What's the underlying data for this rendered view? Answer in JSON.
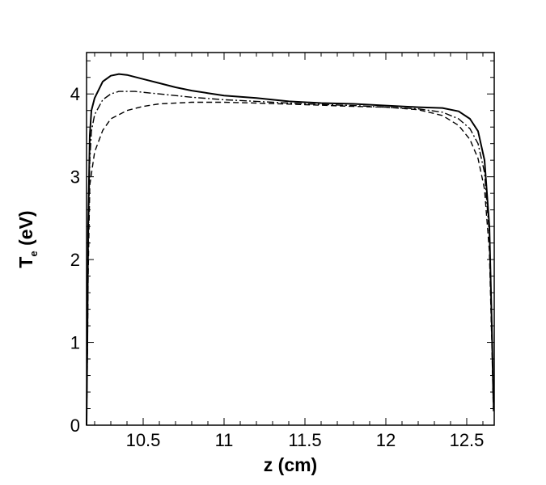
{
  "chart_data": {
    "type": "line",
    "xlabel": "z (cm)",
    "ylabel": {
      "symbol": "T",
      "subscript": "e",
      "unit": "(eV)"
    },
    "xlim": [
      10.15,
      12.67
    ],
    "ylim": [
      0,
      4.5
    ],
    "x_ticks": [
      10.5,
      11,
      11.5,
      12,
      12.5
    ],
    "x_tick_labels": [
      "10.5",
      "11",
      "11.5",
      "12",
      "12.5"
    ],
    "y_ticks": [
      0,
      1,
      2,
      3,
      4
    ],
    "y_tick_labels": [
      "0",
      "1",
      "2",
      "3",
      "4"
    ],
    "grid": false,
    "legend": "none",
    "series": [
      {
        "style": "solid",
        "color": "#000000",
        "points": [
          [
            10.15,
            0
          ],
          [
            10.155,
            1.0
          ],
          [
            10.16,
            2.4
          ],
          [
            10.17,
            3.5
          ],
          [
            10.18,
            3.8
          ],
          [
            10.2,
            3.95
          ],
          [
            10.25,
            4.15
          ],
          [
            10.3,
            4.22
          ],
          [
            10.35,
            4.24
          ],
          [
            10.4,
            4.23
          ],
          [
            10.5,
            4.18
          ],
          [
            10.6,
            4.13
          ],
          [
            10.7,
            4.08
          ],
          [
            10.8,
            4.04
          ],
          [
            10.9,
            4.01
          ],
          [
            11.0,
            3.98
          ],
          [
            11.2,
            3.95
          ],
          [
            11.4,
            3.91
          ],
          [
            11.6,
            3.89
          ],
          [
            11.8,
            3.88
          ],
          [
            12.0,
            3.86
          ],
          [
            12.2,
            3.84
          ],
          [
            12.35,
            3.83
          ],
          [
            12.45,
            3.79
          ],
          [
            12.52,
            3.7
          ],
          [
            12.57,
            3.55
          ],
          [
            12.61,
            3.2
          ],
          [
            12.64,
            2.4
          ],
          [
            12.655,
            1.2
          ],
          [
            12.665,
            0.3
          ]
        ]
      },
      {
        "style": "dashdot",
        "color": "#000000",
        "points": [
          [
            10.15,
            0
          ],
          [
            10.155,
            0.9
          ],
          [
            10.16,
            2.1
          ],
          [
            10.17,
            3.2
          ],
          [
            10.18,
            3.55
          ],
          [
            10.2,
            3.75
          ],
          [
            10.25,
            3.93
          ],
          [
            10.3,
            4.0
          ],
          [
            10.35,
            4.03
          ],
          [
            10.45,
            4.03
          ],
          [
            10.5,
            4.02
          ],
          [
            10.6,
            4.0
          ],
          [
            10.8,
            3.96
          ],
          [
            11.0,
            3.93
          ],
          [
            11.2,
            3.91
          ],
          [
            11.5,
            3.88
          ],
          [
            11.8,
            3.86
          ],
          [
            12.0,
            3.84
          ],
          [
            12.2,
            3.82
          ],
          [
            12.35,
            3.78
          ],
          [
            12.45,
            3.7
          ],
          [
            12.52,
            3.58
          ],
          [
            12.57,
            3.4
          ],
          [
            12.61,
            3.05
          ],
          [
            12.64,
            2.3
          ],
          [
            12.655,
            1.1
          ],
          [
            12.665,
            0.2
          ]
        ]
      },
      {
        "style": "dashed",
        "color": "#000000",
        "points": [
          [
            10.15,
            0
          ],
          [
            10.155,
            0.8
          ],
          [
            10.16,
            1.8
          ],
          [
            10.17,
            2.9
          ],
          [
            10.2,
            3.3
          ],
          [
            10.25,
            3.56
          ],
          [
            10.3,
            3.7
          ],
          [
            10.4,
            3.8
          ],
          [
            10.5,
            3.85
          ],
          [
            10.6,
            3.88
          ],
          [
            10.8,
            3.9
          ],
          [
            11.0,
            3.9
          ],
          [
            11.2,
            3.89
          ],
          [
            11.5,
            3.87
          ],
          [
            11.8,
            3.85
          ],
          [
            12.0,
            3.84
          ],
          [
            12.2,
            3.81
          ],
          [
            12.35,
            3.74
          ],
          [
            12.45,
            3.62
          ],
          [
            12.52,
            3.45
          ],
          [
            12.57,
            3.22
          ],
          [
            12.61,
            2.85
          ],
          [
            12.64,
            2.1
          ],
          [
            12.655,
            1.0
          ],
          [
            12.665,
            0.15
          ]
        ]
      }
    ]
  }
}
